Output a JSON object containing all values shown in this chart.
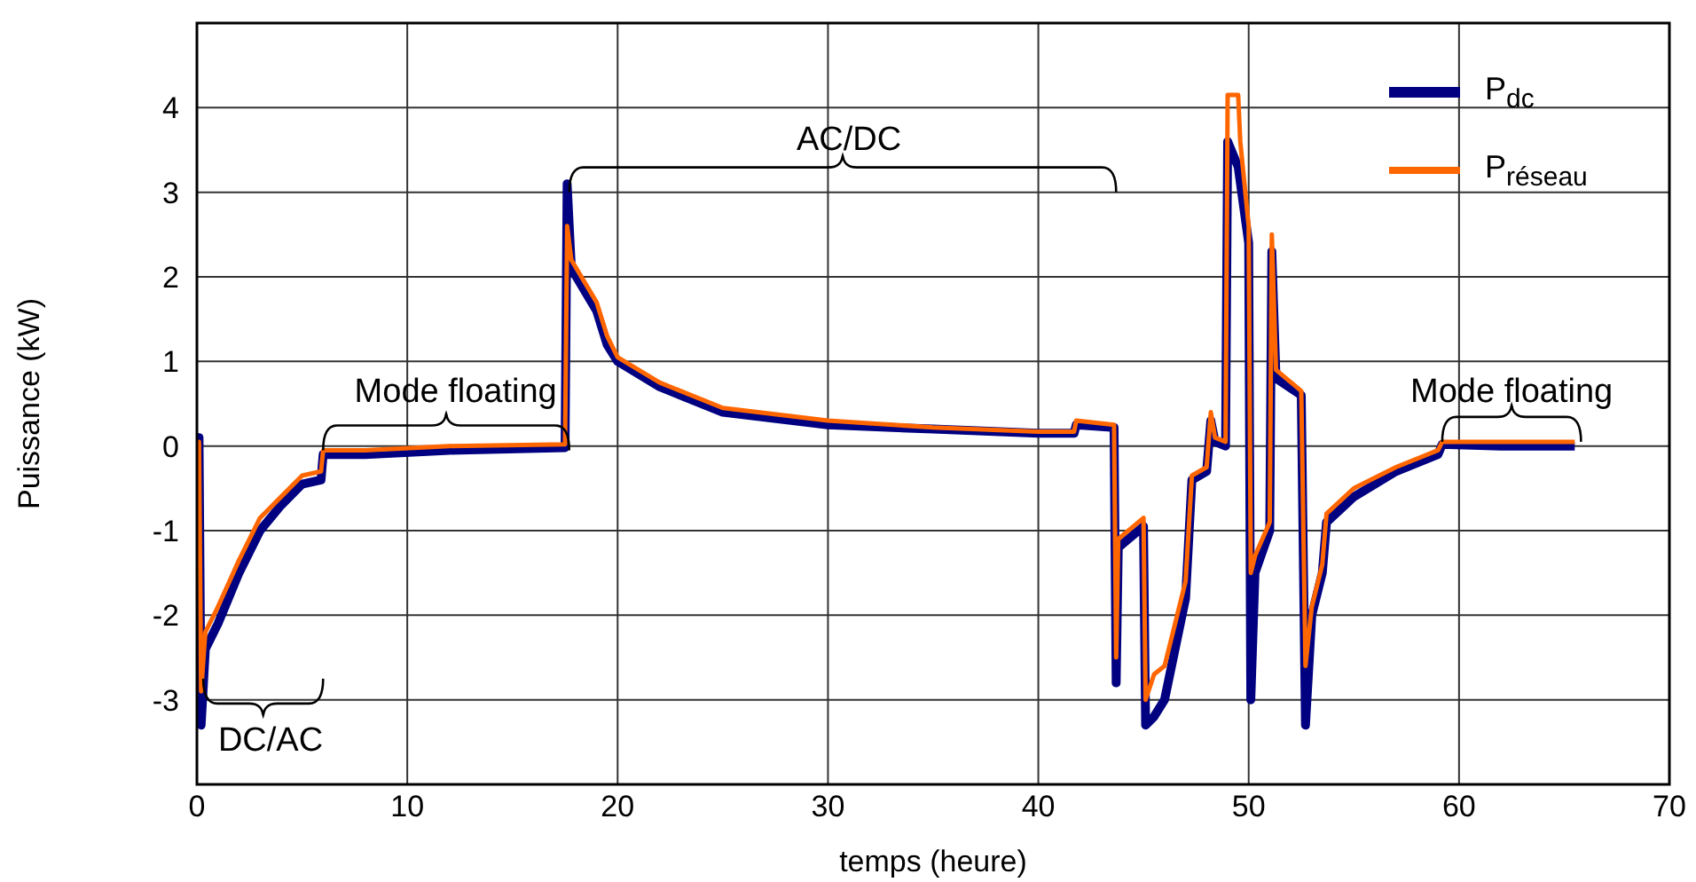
{
  "chart_data": {
    "type": "line",
    "xlabel": "temps (heure)",
    "ylabel": "Puissance (kW)",
    "xlim": [
      0,
      70
    ],
    "xticks": [
      0,
      10,
      20,
      30,
      40,
      50,
      60,
      70
    ],
    "ylim": [
      -4,
      5
    ],
    "yticks": [
      -3,
      -2,
      -1,
      0,
      1,
      2,
      3,
      4
    ],
    "grid": true,
    "legend": "top right",
    "line_style": "solid",
    "marker": "none",
    "series": [
      {
        "name": "P$_{dc}$",
        "color": "#000080",
        "x": [
          0,
          0.1,
          0.2,
          0.4,
          1,
          2,
          3,
          4,
          5,
          5.9,
          6,
          8,
          12,
          17.5,
          17.6,
          17.8,
          19,
          19.5,
          20,
          22,
          25,
          30,
          35,
          40,
          41.7,
          41.8,
          43.6,
          43.7,
          43.8,
          45,
          45.1,
          45.5,
          46,
          47,
          47.3,
          48,
          48.2,
          48.4,
          48.9,
          49,
          49.5,
          50,
          50.1,
          50.3,
          51,
          51.1,
          51.3,
          52.5,
          52.7,
          53,
          53.5,
          53.7,
          55,
          57,
          59,
          59.2,
          62,
          65.5
        ],
        "values": [
          0.1,
          0.1,
          -3.3,
          -2.4,
          -2.1,
          -1.5,
          -1.0,
          -0.7,
          -0.45,
          -0.4,
          -0.1,
          -0.1,
          -0.05,
          -0.02,
          3.1,
          2.1,
          1.6,
          1.2,
          1.0,
          0.7,
          0.4,
          0.25,
          0.2,
          0.15,
          0.15,
          0.25,
          0.22,
          -2.8,
          -1.2,
          -0.95,
          -3.3,
          -3.2,
          -3.0,
          -1.8,
          -0.4,
          -0.3,
          0.3,
          0.05,
          0.0,
          3.6,
          3.3,
          2.4,
          -3.0,
          -1.5,
          -1.0,
          2.3,
          0.8,
          0.6,
          -3.3,
          -2.0,
          -1.5,
          -0.9,
          -0.6,
          -0.3,
          -0.1,
          0.02,
          0.0,
          0.0
        ]
      },
      {
        "name": "P$_{réseau}$",
        "color": "#ff6600",
        "x": [
          0,
          0.1,
          0.2,
          0.4,
          1,
          2,
          3,
          4,
          5,
          5.9,
          6,
          8,
          12,
          17.5,
          17.6,
          17.8,
          19,
          19.5,
          20,
          22,
          25,
          30,
          35,
          40,
          41.7,
          41.8,
          43.6,
          43.7,
          43.8,
          45,
          45.1,
          45.5,
          46,
          47,
          47.3,
          48,
          48.2,
          48.4,
          48.9,
          49,
          49.5,
          49.6,
          50,
          50.1,
          50.3,
          51,
          51.1,
          51.3,
          52.5,
          52.7,
          53,
          53.5,
          53.7,
          55,
          57,
          59,
          59.2,
          62,
          65.5
        ],
        "values": [
          0.05,
          0.05,
          -2.9,
          -2.2,
          -1.9,
          -1.35,
          -0.85,
          -0.6,
          -0.35,
          -0.3,
          -0.05,
          -0.05,
          0.0,
          0.02,
          2.6,
          2.2,
          1.7,
          1.3,
          1.05,
          0.75,
          0.45,
          0.3,
          0.22,
          0.17,
          0.17,
          0.3,
          0.25,
          -2.5,
          -1.1,
          -0.85,
          -3.0,
          -2.7,
          -2.6,
          -1.6,
          -0.35,
          -0.25,
          0.4,
          0.1,
          0.05,
          4.15,
          4.15,
          3.6,
          2.6,
          -1.5,
          -1.3,
          -0.9,
          2.5,
          0.9,
          0.65,
          -2.6,
          -1.9,
          -1.4,
          -0.8,
          -0.5,
          -0.25,
          -0.05,
          0.05,
          0.05,
          0.05
        ]
      }
    ],
    "annotations": [
      "DC/AC",
      "Mode floating",
      "AC/DC",
      "Mode floating"
    ]
  }
}
